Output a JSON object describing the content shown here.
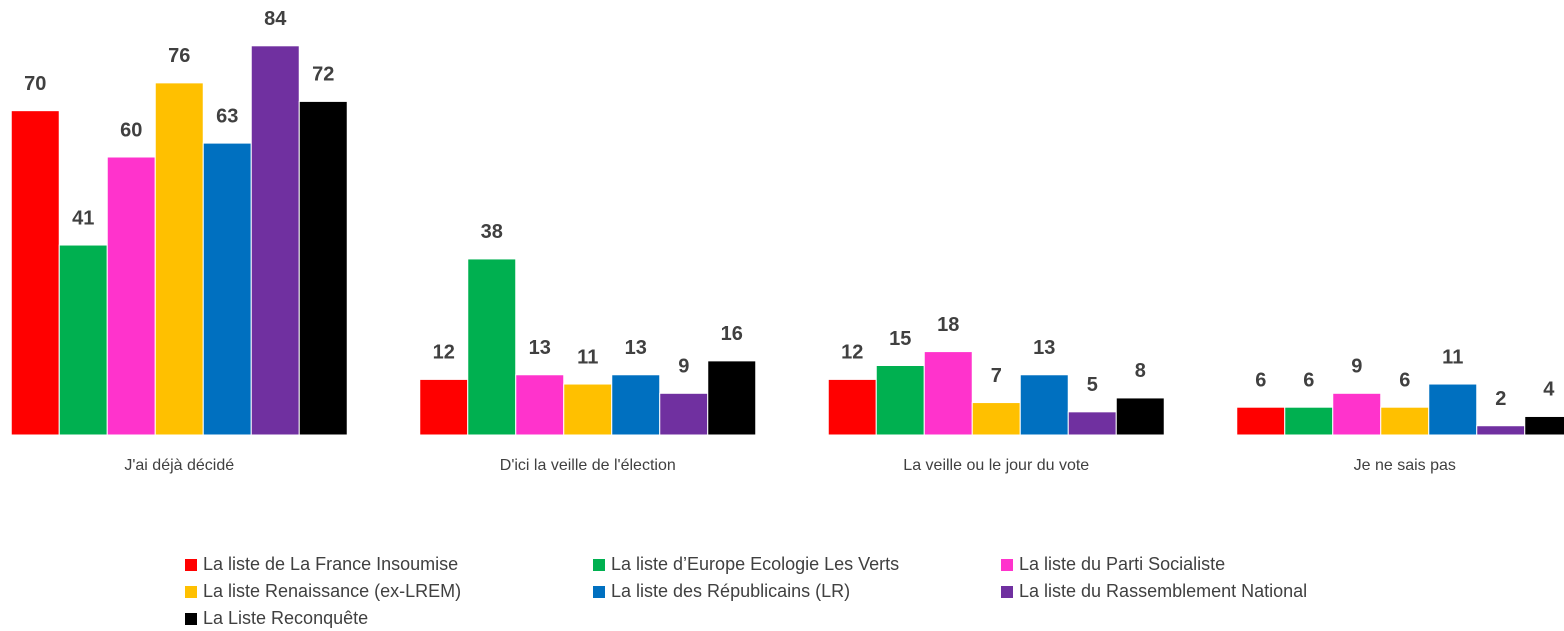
{
  "chart_data": {
    "type": "bar",
    "categories": [
      "J'ai déjà décidé",
      "D'ici la veille de l'élection",
      "La veille ou le jour du vote",
      "Je ne sais pas"
    ],
    "series": [
      {
        "name": "La liste de La France Insoumise",
        "color": "#ff0000",
        "values": [
          70,
          12,
          12,
          6
        ]
      },
      {
        "name": "La liste d’Europe Ecologie Les Verts",
        "color": "#00b050",
        "values": [
          41,
          38,
          15,
          6
        ]
      },
      {
        "name": "La liste du Parti Socialiste",
        "color": "#ff33cc",
        "values": [
          60,
          13,
          18,
          9
        ]
      },
      {
        "name": "La liste Renaissance (ex-LREM)",
        "color": "#ffc000",
        "values": [
          76,
          11,
          7,
          6
        ]
      },
      {
        "name": "La liste des Républicains (LR)",
        "color": "#0070c0",
        "values": [
          63,
          13,
          13,
          11
        ]
      },
      {
        "name": "La liste du Rassemblement National",
        "color": "#7030a0",
        "values": [
          84,
          9,
          5,
          2
        ]
      },
      {
        "name": "La Liste Reconquête",
        "color": "#000000",
        "values": [
          72,
          16,
          8,
          4
        ]
      }
    ],
    "ylim": [
      0,
      90
    ],
    "legend": "bottom"
  }
}
